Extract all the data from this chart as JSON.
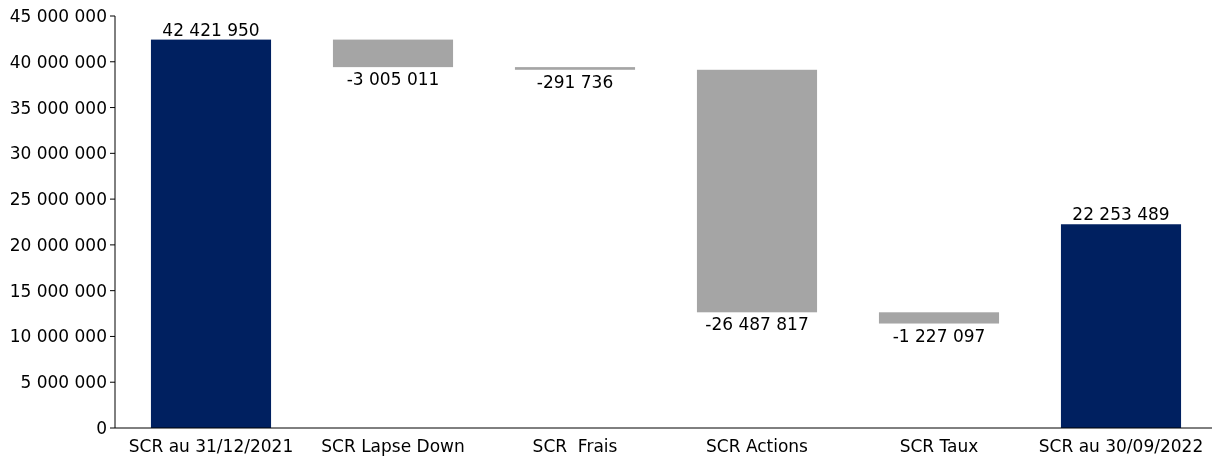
{
  "chart_data": {
    "type": "bar",
    "categories": [
      "SCR au 31/12/2021",
      "SCR Lapse Down",
      "SCR  Frais",
      "SCR Actions",
      "SCR Taux",
      "SCR au 30/09/2022"
    ],
    "values": [
      42421950,
      -3005011,
      -291736,
      -26487817,
      -1227097,
      22253489
    ],
    "base": [
      0,
      42421950,
      39416939,
      39125203,
      12637386,
      0
    ],
    "colors": [
      "#002060",
      "#a5a5a5",
      "#a5a5a5",
      "#a5a5a5",
      "#a5a5a5",
      "#002060"
    ],
    "value_labels": [
      "42 421 950",
      "-3 005 011",
      "-291 736",
      "-26 487 817",
      "-1 227 097",
      "22 253 489"
    ],
    "ylim": [
      0,
      45000000
    ],
    "yticks": [
      {
        "value": 0,
        "label": "0"
      },
      {
        "value": 5000000,
        "label": "5 000 000"
      },
      {
        "value": 10000000,
        "label": "10 000 000"
      },
      {
        "value": 15000000,
        "label": "15 000 000"
      },
      {
        "value": 20000000,
        "label": "20 000 000"
      },
      {
        "value": 25000000,
        "label": "25 000 000"
      },
      {
        "value": 30000000,
        "label": "30 000 000"
      },
      {
        "value": 35000000,
        "label": "35 000 000"
      },
      {
        "value": 40000000,
        "label": "40 000 000"
      },
      {
        "value": 45000000,
        "label": "45 000 000"
      }
    ],
    "grid": false
  }
}
